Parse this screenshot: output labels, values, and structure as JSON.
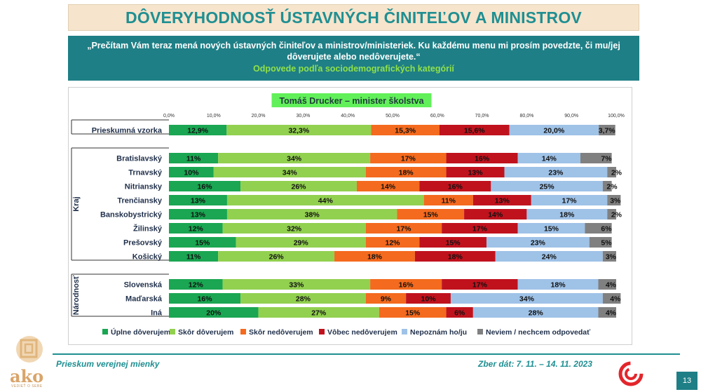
{
  "header": {
    "title": "DÔVERYHODNOSŤ ÚSTAVNÝCH ČINITEĽOV A MINISTROV"
  },
  "question": {
    "line1": "„Prečítam Vám teraz mená nových ústavných činiteľov a ministrov/ministeriek. Ku každému menu mi prosím povedzte, či mu/jej",
    "line2": "dôverujete alebo nedôverujete.“",
    "subtitle": "Odpovede podľa sociodemografických kategórií"
  },
  "footer": {
    "left": "Prieskum verejnej mienky",
    "right": "Zber dát: 7. 11. – 14. 11. 2023",
    "page": "13",
    "logo_text": "ako",
    "logo_sub": "VEDIEŤ O SEBE"
  },
  "colors": {
    "teal": "#1f8f92",
    "full_trust": "#1aa652",
    "rather_trust": "#92d050",
    "rather_distrust": "#f46a1e",
    "no_trust": "#c0121d",
    "dont_know": "#9fc2e7",
    "no_answer": "#808080",
    "chart_title_bg": "#62f05a"
  },
  "chart_data": {
    "type": "bar",
    "stacked": "horizontal-100",
    "title": "Tomáš Drucker – minister školstva",
    "xlim": [
      0,
      100
    ],
    "x_ticks": [
      "0,0%",
      "10,0%",
      "20,0%",
      "30,0%",
      "40,0%",
      "50,0%",
      "60,0%",
      "70,0%",
      "80,0%",
      "90,0%",
      "100,0%"
    ],
    "legend_position": "bottom",
    "series": [
      {
        "name": "Úplne dôverujem",
        "color": "#1aa652"
      },
      {
        "name": "Skôr dôverujem",
        "color": "#92d050"
      },
      {
        "name": "Skôr nedôverujem",
        "color": "#f46a1e"
      },
      {
        "name": "Vôbec nedôverujem",
        "color": "#c0121d"
      },
      {
        "name": "Nepoznám ho/ju",
        "color": "#9fc2e7"
      },
      {
        "name": "Neviem / nechcem odpovedať",
        "color": "#808080"
      }
    ],
    "groups": [
      {
        "label": "",
        "rows": [
          {
            "category": "Prieskumná vzorka",
            "values": [
              12.9,
              32.3,
              15.3,
              15.6,
              20.0,
              3.7
            ],
            "labels": [
              "12,9%",
              "32,3%",
              "15,3%",
              "15,6%",
              "20,0%",
              "3,7%"
            ]
          }
        ]
      },
      {
        "label": "Kraj",
        "rows": [
          {
            "category": "Bratislavský",
            "values": [
              11,
              34,
              17,
              16,
              14,
              7
            ],
            "labels": [
              "11%",
              "34%",
              "17%",
              "16%",
              "14%",
              "7%"
            ]
          },
          {
            "category": "Trnavský",
            "values": [
              10,
              34,
              18,
              13,
              23,
              2
            ],
            "labels": [
              "10%",
              "34%",
              "18%",
              "13%",
              "23%",
              "2%"
            ]
          },
          {
            "category": "Nitriansky",
            "values": [
              16,
              26,
              14,
              16,
              25,
              2
            ],
            "labels": [
              "16%",
              "26%",
              "14%",
              "16%",
              "25%",
              "2%"
            ]
          },
          {
            "category": "Trenčiansky",
            "values": [
              13,
              44,
              11,
              13,
              17,
              3
            ],
            "labels": [
              "13%",
              "44%",
              "11%",
              "13%",
              "17%",
              "3%"
            ]
          },
          {
            "category": "Banskobystrický",
            "values": [
              13,
              38,
              15,
              14,
              18,
              2
            ],
            "labels": [
              "13%",
              "38%",
              "15%",
              "14%",
              "18%",
              "2%"
            ]
          },
          {
            "category": "Žilinský",
            "values": [
              12,
              32,
              17,
              17,
              15,
              6
            ],
            "labels": [
              "12%",
              "32%",
              "17%",
              "17%",
              "15%",
              "6%"
            ]
          },
          {
            "category": "Prešovský",
            "values": [
              15,
              29,
              12,
              15,
              23,
              5
            ],
            "labels": [
              "15%",
              "29%",
              "12%",
              "15%",
              "23%",
              "5%"
            ]
          },
          {
            "category": "Košický",
            "values": [
              11,
              26,
              18,
              18,
              24,
              3
            ],
            "labels": [
              "11%",
              "26%",
              "18%",
              "18%",
              "24%",
              "3%"
            ]
          }
        ]
      },
      {
        "label": "Národnosť",
        "rows": [
          {
            "category": "Slovenská",
            "values": [
              12,
              33,
              16,
              17,
              18,
              4
            ],
            "labels": [
              "12%",
              "33%",
              "16%",
              "17%",
              "18%",
              "4%"
            ]
          },
          {
            "category": "Maďarská",
            "values": [
              16,
              28,
              9,
              10,
              34,
              4
            ],
            "labels": [
              "16%",
              "28%",
              "9%",
              "10%",
              "34%",
              "4%"
            ]
          },
          {
            "category": "Iná",
            "values": [
              20,
              27,
              15,
              6,
              28,
              4
            ],
            "labels": [
              "20%",
              "27%",
              "15%",
              "6%",
              "28%",
              "4%"
            ]
          }
        ]
      }
    ]
  }
}
